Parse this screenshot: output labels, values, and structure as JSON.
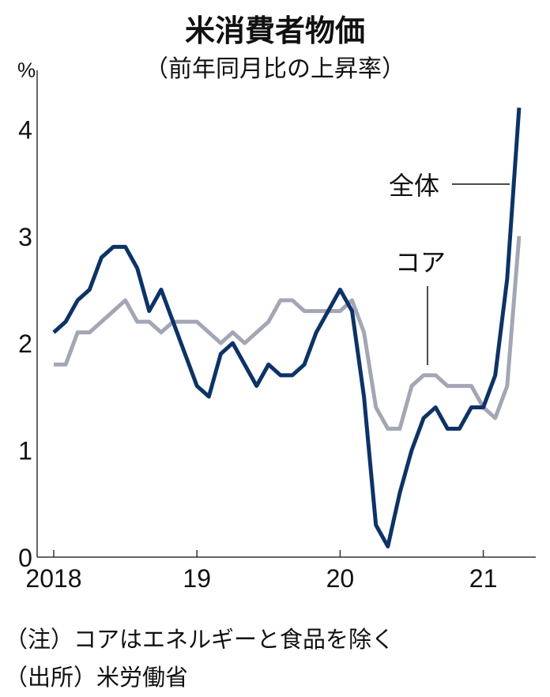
{
  "chart_data": {
    "type": "line",
    "title": "米消費者物価",
    "subtitle": "（前年同月比の上昇率）",
    "ylabel": "%",
    "ylim": [
      0,
      4.5
    ],
    "yticks": [
      0,
      1,
      2,
      3,
      4
    ],
    "xticks": [
      "2018",
      "19",
      "20",
      "21"
    ],
    "x_start": "2018-01",
    "x_end": "2021-04",
    "frequency": "monthly",
    "grid": false,
    "series": [
      {
        "name": "全体",
        "color": "#0d3366",
        "values": [
          2.1,
          2.2,
          2.4,
          2.5,
          2.8,
          2.9,
          2.9,
          2.7,
          2.3,
          2.5,
          2.2,
          1.9,
          1.6,
          1.5,
          1.9,
          2.0,
          1.8,
          1.6,
          1.8,
          1.7,
          1.7,
          1.8,
          2.1,
          2.3,
          2.5,
          2.3,
          1.5,
          0.3,
          0.1,
          0.6,
          1.0,
          1.3,
          1.4,
          1.2,
          1.2,
          1.4,
          1.4,
          1.7,
          2.6,
          4.2
        ]
      },
      {
        "name": "コア",
        "color": "#a3a6b4",
        "values": [
          1.8,
          1.8,
          2.1,
          2.1,
          2.2,
          2.3,
          2.4,
          2.2,
          2.2,
          2.1,
          2.2,
          2.2,
          2.2,
          2.1,
          2.0,
          2.1,
          2.0,
          2.1,
          2.2,
          2.4,
          2.4,
          2.3,
          2.3,
          2.3,
          2.3,
          2.4,
          2.1,
          1.4,
          1.2,
          1.2,
          1.6,
          1.7,
          1.7,
          1.6,
          1.6,
          1.6,
          1.4,
          1.3,
          1.6,
          3.0
        ]
      }
    ],
    "notes": [
      "（注）コアはエネルギーと食品を除く",
      "（出所）米労働省"
    ]
  }
}
